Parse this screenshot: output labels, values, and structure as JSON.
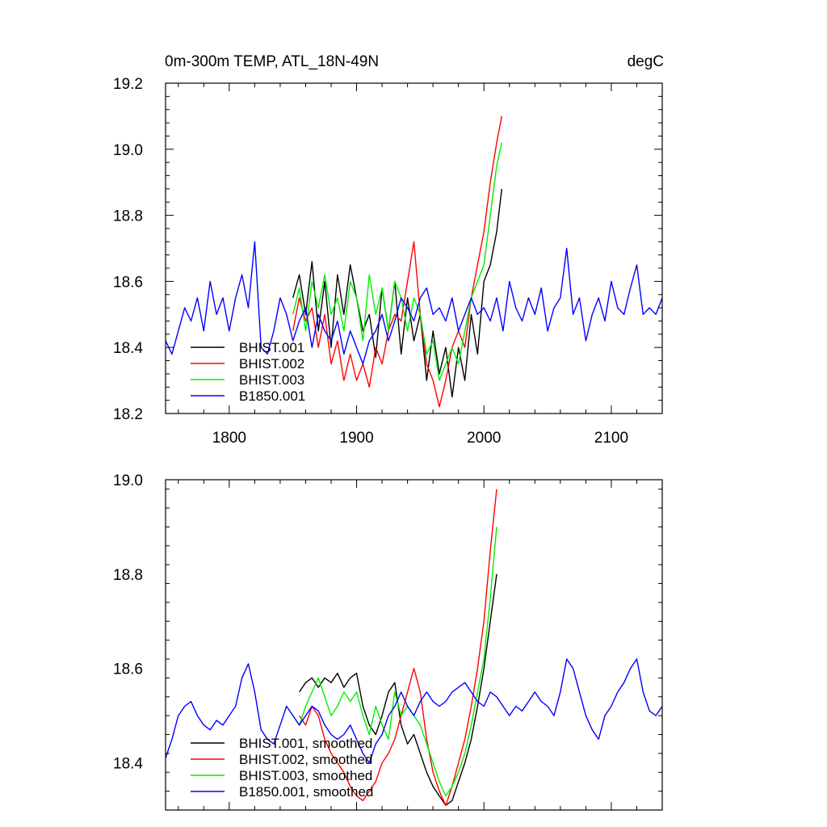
{
  "chart_data": [
    {
      "type": "line",
      "title": "0m-300m TEMP, ATL_18N-49N",
      "units": "degC",
      "xlim": [
        1750,
        2140
      ],
      "ylim": [
        18.2,
        19.2
      ],
      "xticks": [
        1800,
        1900,
        2000,
        2100
      ],
      "yticks": [
        18.2,
        18.4,
        18.6,
        18.8,
        19.0,
        19.2
      ],
      "ytick_labels": [
        "18.2",
        "18.4",
        "18.6",
        "18.8",
        "19.0",
        "19.2"
      ],
      "legend": [
        "BHIST.001",
        "BHIST.002",
        "BHIST.003",
        "B1850.001"
      ],
      "legend_placement": "bottom-left",
      "series": [
        {
          "name": "BHIST.001",
          "color": "#000000",
          "x": [
            1850,
            1855,
            1860,
            1865,
            1870,
            1875,
            1880,
            1885,
            1890,
            1895,
            1900,
            1905,
            1910,
            1915,
            1920,
            1925,
            1930,
            1935,
            1940,
            1945,
            1950,
            1955,
            1960,
            1965,
            1970,
            1975,
            1980,
            1985,
            1990,
            1995,
            2000,
            2005,
            2010,
            2014
          ],
          "y": [
            18.55,
            18.62,
            18.5,
            18.66,
            18.45,
            18.6,
            18.4,
            18.62,
            18.5,
            18.65,
            18.55,
            18.45,
            18.5,
            18.37,
            18.58,
            18.45,
            18.6,
            18.38,
            18.55,
            18.42,
            18.5,
            18.3,
            18.45,
            18.32,
            18.4,
            18.25,
            18.4,
            18.3,
            18.5,
            18.38,
            18.6,
            18.65,
            18.75,
            18.88
          ]
        },
        {
          "name": "BHIST.002",
          "color": "#ff0000",
          "x": [
            1850,
            1855,
            1860,
            1865,
            1870,
            1875,
            1880,
            1885,
            1890,
            1895,
            1900,
            1905,
            1910,
            1915,
            1920,
            1925,
            1930,
            1935,
            1940,
            1945,
            1950,
            1955,
            1960,
            1965,
            1970,
            1975,
            1980,
            1985,
            1990,
            1995,
            2000,
            2005,
            2010,
            2014
          ],
          "y": [
            18.45,
            18.55,
            18.48,
            18.52,
            18.4,
            18.5,
            18.35,
            18.42,
            18.3,
            18.38,
            18.3,
            18.35,
            18.28,
            18.4,
            18.35,
            18.45,
            18.5,
            18.48,
            18.6,
            18.72,
            18.5,
            18.35,
            18.3,
            18.22,
            18.3,
            18.4,
            18.45,
            18.4,
            18.55,
            18.65,
            18.75,
            18.9,
            19.02,
            19.1
          ]
        },
        {
          "name": "BHIST.003",
          "color": "#00ee00",
          "x": [
            1850,
            1855,
            1860,
            1865,
            1870,
            1875,
            1880,
            1885,
            1890,
            1895,
            1900,
            1905,
            1910,
            1915,
            1920,
            1925,
            1930,
            1935,
            1940,
            1945,
            1950,
            1955,
            1960,
            1965,
            1970,
            1975,
            1980,
            1985,
            1990,
            1995,
            2000,
            2005,
            2010,
            2014
          ],
          "y": [
            18.5,
            18.58,
            18.45,
            18.6,
            18.52,
            18.62,
            18.5,
            18.55,
            18.45,
            18.6,
            18.55,
            18.42,
            18.62,
            18.5,
            18.58,
            18.45,
            18.6,
            18.55,
            18.45,
            18.55,
            18.5,
            18.38,
            18.42,
            18.3,
            18.35,
            18.4,
            18.35,
            18.45,
            18.55,
            18.6,
            18.65,
            18.8,
            18.95,
            19.02
          ]
        },
        {
          "name": "B1850.001",
          "color": "#0000ff",
          "x": [
            1750,
            1755,
            1760,
            1765,
            1770,
            1775,
            1780,
            1785,
            1790,
            1795,
            1800,
            1805,
            1810,
            1815,
            1820,
            1825,
            1830,
            1835,
            1840,
            1845,
            1850,
            1855,
            1860,
            1865,
            1870,
            1875,
            1880,
            1885,
            1890,
            1895,
            1900,
            1905,
            1910,
            1915,
            1920,
            1925,
            1930,
            1935,
            1940,
            1945,
            1950,
            1955,
            1960,
            1965,
            1970,
            1975,
            1980,
            1985,
            1990,
            1995,
            2000,
            2005,
            2010,
            2015,
            2020,
            2025,
            2030,
            2035,
            2040,
            2045,
            2050,
            2055,
            2060,
            2065,
            2070,
            2075,
            2080,
            2085,
            2090,
            2095,
            2100,
            2105,
            2110,
            2115,
            2120,
            2125,
            2130,
            2135,
            2140
          ],
          "y": [
            18.42,
            18.38,
            18.45,
            18.52,
            18.48,
            18.55,
            18.45,
            18.6,
            18.5,
            18.55,
            18.45,
            18.55,
            18.62,
            18.52,
            18.72,
            18.4,
            18.38,
            18.45,
            18.55,
            18.5,
            18.42,
            18.48,
            18.52,
            18.4,
            18.5,
            18.45,
            18.42,
            18.48,
            18.38,
            18.45,
            18.4,
            18.35,
            18.42,
            18.45,
            18.5,
            18.42,
            18.48,
            18.55,
            18.52,
            18.48,
            18.55,
            18.58,
            18.5,
            18.52,
            18.48,
            18.55,
            18.45,
            18.5,
            18.55,
            18.5,
            18.52,
            18.48,
            18.55,
            18.45,
            18.6,
            18.52,
            18.48,
            18.55,
            18.5,
            18.58,
            18.45,
            18.52,
            18.55,
            18.7,
            18.5,
            18.55,
            18.42,
            18.5,
            18.55,
            18.48,
            18.6,
            18.52,
            18.5,
            18.58,
            18.65,
            18.5,
            18.52,
            18.5,
            18.55
          ]
        }
      ]
    },
    {
      "type": "line",
      "title": "",
      "xlim": [
        1750,
        2140
      ],
      "ylim": [
        18.3,
        19.0
      ],
      "xticks": [
        1800,
        1900,
        2000,
        2100
      ],
      "yticks": [
        18.4,
        18.6,
        18.8,
        19.0
      ],
      "ytick_labels": [
        "18.4",
        "18.6",
        "18.8",
        "19.0"
      ],
      "legend": [
        "BHIST.001, smoothed",
        "BHIST.002, smoothed",
        "BHIST.003, smoothed",
        "B1850.001, smoothed"
      ],
      "legend_placement": "bottom-left",
      "series": [
        {
          "name": "BHIST.001, smoothed",
          "color": "#000000",
          "x": [
            1855,
            1860,
            1865,
            1870,
            1875,
            1880,
            1885,
            1890,
            1895,
            1900,
            1905,
            1910,
            1915,
            1920,
            1925,
            1930,
            1935,
            1940,
            1945,
            1950,
            1955,
            1960,
            1965,
            1970,
            1975,
            1980,
            1985,
            1990,
            1995,
            2000,
            2005,
            2010
          ],
          "y": [
            18.55,
            18.57,
            18.58,
            18.56,
            18.58,
            18.57,
            18.59,
            18.56,
            18.58,
            18.59,
            18.52,
            18.48,
            18.46,
            18.5,
            18.55,
            18.57,
            18.48,
            18.44,
            18.46,
            18.42,
            18.38,
            18.35,
            18.33,
            18.31,
            18.32,
            18.36,
            18.4,
            18.45,
            18.52,
            18.6,
            18.7,
            18.8
          ]
        },
        {
          "name": "BHIST.002, smoothed",
          "color": "#ff0000",
          "x": [
            1855,
            1860,
            1865,
            1870,
            1875,
            1880,
            1885,
            1890,
            1895,
            1900,
            1905,
            1910,
            1915,
            1920,
            1925,
            1930,
            1935,
            1940,
            1945,
            1950,
            1955,
            1960,
            1965,
            1970,
            1975,
            1980,
            1985,
            1990,
            1995,
            2000,
            2005,
            2010
          ],
          "y": [
            18.5,
            18.48,
            18.52,
            18.5,
            18.45,
            18.42,
            18.4,
            18.38,
            18.35,
            18.33,
            18.32,
            18.34,
            18.36,
            18.4,
            18.42,
            18.45,
            18.5,
            18.55,
            18.6,
            18.55,
            18.45,
            18.38,
            18.34,
            18.31,
            18.35,
            18.4,
            18.45,
            18.52,
            18.6,
            18.7,
            18.85,
            18.98
          ]
        },
        {
          "name": "BHIST.003, smoothed",
          "color": "#00ee00",
          "x": [
            1855,
            1860,
            1865,
            1870,
            1875,
            1880,
            1885,
            1890,
            1895,
            1900,
            1905,
            1910,
            1915,
            1920,
            1925,
            1930,
            1935,
            1940,
            1945,
            1950,
            1955,
            1960,
            1965,
            1970,
            1975,
            1980,
            1985,
            1990,
            1995,
            2000,
            2005,
            2010
          ],
          "y": [
            18.48,
            18.52,
            18.55,
            18.58,
            18.54,
            18.5,
            18.52,
            18.55,
            18.53,
            18.55,
            18.5,
            18.46,
            18.52,
            18.48,
            18.45,
            18.55,
            18.5,
            18.52,
            18.5,
            18.48,
            18.44,
            18.4,
            18.36,
            18.33,
            18.35,
            18.38,
            18.42,
            18.48,
            18.55,
            18.62,
            18.75,
            18.9
          ]
        },
        {
          "name": "B1850.001, smoothed",
          "color": "#0000ff",
          "x": [
            1750,
            1755,
            1760,
            1765,
            1770,
            1775,
            1780,
            1785,
            1790,
            1795,
            1800,
            1805,
            1810,
            1815,
            1820,
            1825,
            1830,
            1835,
            1840,
            1845,
            1850,
            1855,
            1860,
            1865,
            1870,
            1875,
            1880,
            1885,
            1890,
            1895,
            1900,
            1905,
            1910,
            1915,
            1920,
            1925,
            1930,
            1935,
            1940,
            1945,
            1950,
            1955,
            1960,
            1965,
            1970,
            1975,
            1980,
            1985,
            1990,
            1995,
            2000,
            2005,
            2010,
            2015,
            2020,
            2025,
            2030,
            2035,
            2040,
            2045,
            2050,
            2055,
            2060,
            2065,
            2070,
            2075,
            2080,
            2085,
            2090,
            2095,
            2100,
            2105,
            2110,
            2115,
            2120,
            2125,
            2130,
            2135,
            2140
          ],
          "y": [
            18.41,
            18.45,
            18.5,
            18.52,
            18.53,
            18.5,
            18.48,
            18.47,
            18.49,
            18.48,
            18.5,
            18.52,
            18.58,
            18.61,
            18.55,
            18.47,
            18.45,
            18.44,
            18.48,
            18.52,
            18.5,
            18.48,
            18.5,
            18.52,
            18.51,
            18.48,
            18.46,
            18.45,
            18.46,
            18.48,
            18.45,
            18.42,
            18.4,
            18.44,
            18.46,
            18.5,
            18.52,
            18.55,
            18.52,
            18.5,
            18.53,
            18.55,
            18.53,
            18.52,
            18.53,
            18.55,
            18.56,
            18.57,
            18.55,
            18.53,
            18.52,
            18.55,
            18.54,
            18.52,
            18.5,
            18.52,
            18.51,
            18.53,
            18.55,
            18.53,
            18.52,
            18.5,
            18.55,
            18.62,
            18.6,
            18.55,
            18.5,
            18.47,
            18.45,
            18.5,
            18.52,
            18.55,
            18.57,
            18.6,
            18.62,
            18.55,
            18.51,
            18.5,
            18.52
          ]
        }
      ]
    }
  ]
}
